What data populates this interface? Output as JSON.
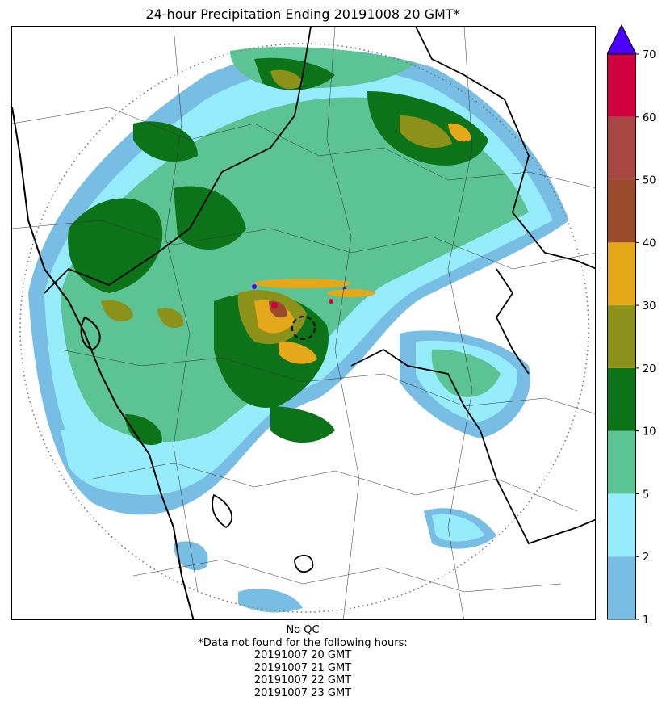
{
  "title": "24-hour Precipitation Ending 20191008 20 GMT*",
  "legend": {
    "levels": [
      "1",
      "2",
      "5",
      "10",
      "20",
      "30",
      "40",
      "50",
      "60",
      "70"
    ],
    "bins": [
      {
        "range": "1-2",
        "color": "#78bde3"
      },
      {
        "range": "2-5",
        "color": "#97ecfb"
      },
      {
        "range": "5-10",
        "color": "#5cc395"
      },
      {
        "range": "10-20",
        "color": "#0d7319"
      },
      {
        "range": "20-30",
        "color": "#8c9119"
      },
      {
        "range": "30-40",
        "color": "#e6a81b"
      },
      {
        "range": "40-50",
        "color": "#9b4a2b"
      },
      {
        "range": "50-60",
        "color": "#a64841"
      },
      {
        "range": "60-70",
        "color": "#d0003f"
      },
      {
        "range": ">70",
        "color": "#4b00ff"
      }
    ],
    "extend": "max"
  },
  "footer": {
    "qc": "No QC",
    "note": "*Data not found for the following hours:",
    "missing_hours": [
      "20191007 20 GMT",
      "20191007 21 GMT",
      "20191007 22 GMT",
      "20191007 23 GMT"
    ]
  },
  "map": {
    "range_ring": "dotted",
    "radar_site_marker": "dashed-circle",
    "coastline_color": "#000000",
    "border_color": "#000000"
  }
}
